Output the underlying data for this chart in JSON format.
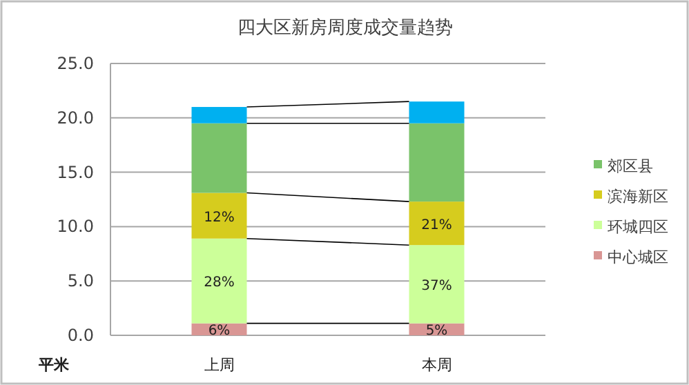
{
  "chart_data": {
    "type": "bar",
    "stacked": true,
    "title": "四大区新房周度成交量趋势",
    "ylabel": "平米",
    "categories": [
      "上周",
      "本周"
    ],
    "series": [
      {
        "name": "中心城区",
        "color": "#d99694",
        "values": [
          1.1,
          1.1
        ]
      },
      {
        "name": "环城四区",
        "color": "#ccff99",
        "values": [
          7.8,
          7.2
        ]
      },
      {
        "name": "滨海新区",
        "color": "#d6cc1e",
        "values": [
          4.2,
          4.0
        ]
      },
      {
        "name": "郊区县",
        "color": "#7ac36a",
        "values": [
          6.4,
          7.2
        ]
      },
      {
        "color": "#00b0f0",
        "values": [
          1.5,
          2.0
        ]
      }
    ],
    "ylim": [
      0,
      25
    ],
    "yticks": [
      {
        "value": 0,
        "label": "0.0"
      },
      {
        "value": 5,
        "label": "5.0"
      },
      {
        "value": 10,
        "label": "10.0"
      },
      {
        "value": 15,
        "label": "15.0"
      },
      {
        "value": 20,
        "label": "20.0"
      },
      {
        "value": 25,
        "label": "25.0"
      }
    ],
    "annotations": [
      {
        "text": "6%",
        "x": "上周",
        "y": 1.1
      },
      {
        "text": "28%",
        "x": "上周",
        "y": 8.9
      },
      {
        "text": "12%",
        "x": "上周",
        "y": 13.1
      },
      {
        "text": "5%",
        "x": "本周",
        "y": 1.1
      },
      {
        "text": "37%",
        "x": "本周",
        "y": 8.3
      },
      {
        "text": "21%",
        "x": "本周",
        "y": 12.3
      }
    ],
    "grid": "y",
    "legend": "right"
  }
}
